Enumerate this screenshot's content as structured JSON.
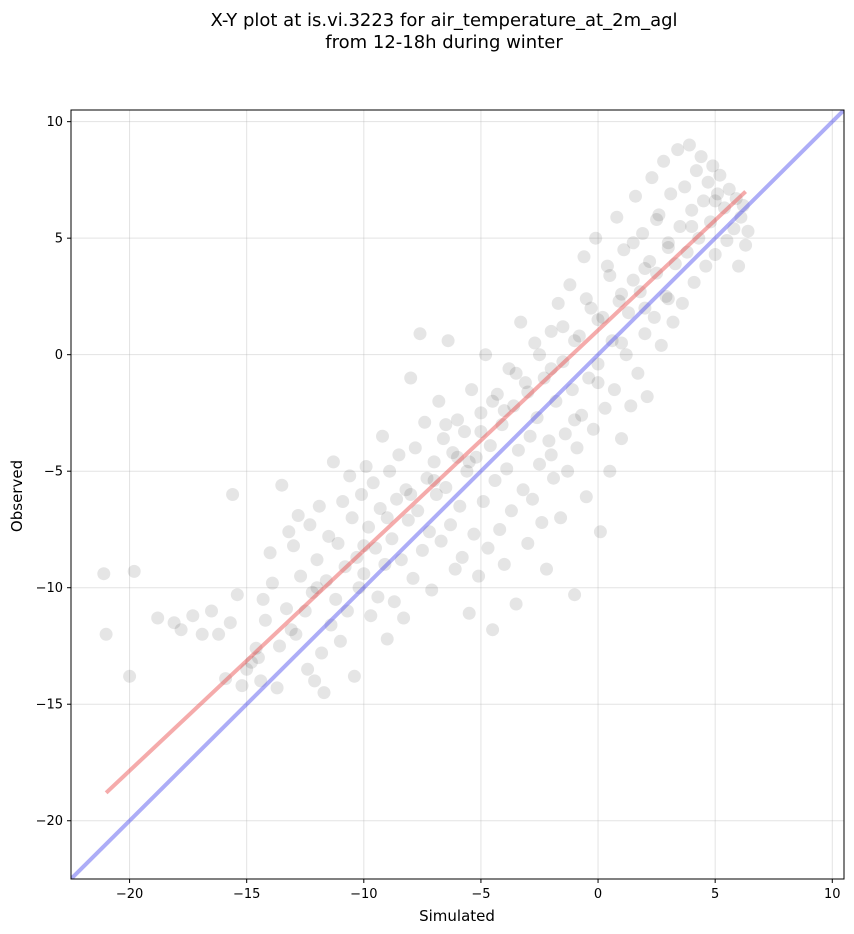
{
  "chart_data": {
    "type": "scatter",
    "title_lines": [
      "X-Y plot at is.vi.3223 for air_temperature_at_2m_agl",
      "from 12-18h during winter"
    ],
    "xlabel": "Simulated",
    "ylabel": "Observed",
    "xlim": [
      -22.5,
      10.5
    ],
    "ylim": [
      -22.5,
      10.5
    ],
    "x_ticks": [
      -20,
      -15,
      -10,
      -5,
      0,
      5,
      10
    ],
    "y_ticks": [
      -20,
      -15,
      -10,
      -5,
      0,
      5,
      10
    ],
    "x_tick_labels": [
      "−20",
      "−15",
      "−10",
      "−5",
      "0",
      "5",
      "10"
    ],
    "y_tick_labels": [
      "−20",
      "−15",
      "−10",
      "−5",
      "0",
      "5",
      "10"
    ],
    "grid": true,
    "point_color": "#000000",
    "point_alpha": 0.1,
    "series": [
      {
        "values": [
          [
            -21.1,
            -9.4
          ],
          [
            -21.0,
            -12.0
          ],
          [
            -20.0,
            -13.8
          ],
          [
            -19.8,
            -9.3
          ],
          [
            -18.8,
            -11.3
          ],
          [
            -18.1,
            -11.5
          ],
          [
            -17.8,
            -11.8
          ],
          [
            -17.3,
            -11.2
          ],
          [
            -16.9,
            -12.0
          ],
          [
            -16.5,
            -11.0
          ],
          [
            -16.2,
            -12.0
          ],
          [
            -15.9,
            -13.9
          ],
          [
            -15.7,
            -11.5
          ],
          [
            -15.6,
            -6.0
          ],
          [
            -15.4,
            -10.3
          ],
          [
            -15.2,
            -14.2
          ],
          [
            -15.0,
            -13.5
          ],
          [
            -14.8,
            -13.2
          ],
          [
            -14.6,
            -12.6
          ],
          [
            -14.4,
            -14.0
          ],
          [
            -14.3,
            -10.5
          ],
          [
            -14.2,
            -11.4
          ],
          [
            -14.0,
            -8.5
          ],
          [
            -13.9,
            -9.8
          ],
          [
            -13.7,
            -14.3
          ],
          [
            -13.6,
            -12.5
          ],
          [
            -13.5,
            -5.6
          ],
          [
            -13.3,
            -10.9
          ],
          [
            -13.2,
            -7.6
          ],
          [
            -13.0,
            -8.2
          ],
          [
            -12.9,
            -12.0
          ],
          [
            -12.8,
            -6.9
          ],
          [
            -12.7,
            -9.5
          ],
          [
            -12.5,
            -11.0
          ],
          [
            -12.4,
            -13.5
          ],
          [
            -12.3,
            -7.3
          ],
          [
            -12.2,
            -10.2
          ],
          [
            -12.1,
            -14.0
          ],
          [
            -12.0,
            -8.8
          ],
          [
            -11.9,
            -6.5
          ],
          [
            -11.8,
            -12.8
          ],
          [
            -11.7,
            -14.5
          ],
          [
            -11.6,
            -9.7
          ],
          [
            -11.5,
            -7.8
          ],
          [
            -11.4,
            -11.6
          ],
          [
            -11.3,
            -4.6
          ],
          [
            -11.2,
            -10.5
          ],
          [
            -11.1,
            -8.1
          ],
          [
            -11.0,
            -12.3
          ],
          [
            -10.9,
            -6.3
          ],
          [
            -10.8,
            -9.1
          ],
          [
            -10.7,
            -11.0
          ],
          [
            -10.6,
            -5.2
          ],
          [
            -10.5,
            -7.0
          ],
          [
            -10.4,
            -13.8
          ],
          [
            -10.3,
            -8.7
          ],
          [
            -10.2,
            -10.0
          ],
          [
            -10.1,
            -6.0
          ],
          [
            -10.0,
            -9.4
          ],
          [
            -9.9,
            -4.8
          ],
          [
            -9.8,
            -7.4
          ],
          [
            -9.7,
            -11.2
          ],
          [
            -9.6,
            -5.5
          ],
          [
            -9.5,
            -8.3
          ],
          [
            -9.4,
            -10.4
          ],
          [
            -9.3,
            -6.6
          ],
          [
            -9.2,
            -3.5
          ],
          [
            -9.1,
            -9.0
          ],
          [
            -9.0,
            -12.2
          ],
          [
            -8.9,
            -5.0
          ],
          [
            -8.8,
            -7.9
          ],
          [
            -8.7,
            -10.6
          ],
          [
            -8.6,
            -6.2
          ],
          [
            -8.5,
            -4.3
          ],
          [
            -8.4,
            -8.8
          ],
          [
            -8.3,
            -11.3
          ],
          [
            -8.2,
            -5.8
          ],
          [
            -8.1,
            -7.1
          ],
          [
            -8.0,
            -1.0
          ],
          [
            -7.9,
            -9.6
          ],
          [
            -7.8,
            -4.0
          ],
          [
            -7.7,
            -6.7
          ],
          [
            -7.6,
            0.9
          ],
          [
            -7.5,
            -8.4
          ],
          [
            -7.4,
            -2.9
          ],
          [
            -7.3,
            -5.3
          ],
          [
            -7.2,
            -7.6
          ],
          [
            -7.1,
            -10.1
          ],
          [
            -7.0,
            -4.6
          ],
          [
            -6.9,
            -6.0
          ],
          [
            -6.8,
            -2.0
          ],
          [
            -6.7,
            -8.0
          ],
          [
            -6.6,
            -3.6
          ],
          [
            -6.5,
            -5.7
          ],
          [
            -6.4,
            0.6
          ],
          [
            -6.3,
            -7.3
          ],
          [
            -6.2,
            -4.2
          ],
          [
            -6.1,
            -9.2
          ],
          [
            -6.0,
            -2.8
          ],
          [
            -5.9,
            -6.5
          ],
          [
            -5.8,
            -8.7
          ],
          [
            -5.7,
            -3.3
          ],
          [
            -5.6,
            -5.0
          ],
          [
            -5.5,
            -11.1
          ],
          [
            -5.4,
            -1.5
          ],
          [
            -5.3,
            -7.7
          ],
          [
            -5.2,
            -4.4
          ],
          [
            -5.1,
            -9.5
          ],
          [
            -5.0,
            -2.5
          ],
          [
            -4.9,
            -6.3
          ],
          [
            -4.8,
            0.0
          ],
          [
            -4.7,
            -8.3
          ],
          [
            -4.6,
            -3.9
          ],
          [
            -4.5,
            -11.8
          ],
          [
            -4.4,
            -5.4
          ],
          [
            -4.3,
            -1.7
          ],
          [
            -4.2,
            -7.5
          ],
          [
            -4.1,
            -3.0
          ],
          [
            -4.0,
            -9.0
          ],
          [
            -3.9,
            -4.9
          ],
          [
            -3.8,
            -0.6
          ],
          [
            -3.7,
            -6.7
          ],
          [
            -3.6,
            -2.2
          ],
          [
            -3.5,
            -10.7
          ],
          [
            -3.4,
            -4.1
          ],
          [
            -3.3,
            1.4
          ],
          [
            -3.2,
            -5.8
          ],
          [
            -3.1,
            -1.2
          ],
          [
            -3.0,
            -8.1
          ],
          [
            -2.9,
            -3.5
          ],
          [
            -2.8,
            -6.2
          ],
          [
            -2.7,
            0.5
          ],
          [
            -2.6,
            -2.7
          ],
          [
            -2.5,
            -4.7
          ],
          [
            -2.4,
            -7.2
          ],
          [
            -2.3,
            -1.0
          ],
          [
            -2.2,
            -9.2
          ],
          [
            -2.1,
            -3.7
          ],
          [
            -2.0,
            1.0
          ],
          [
            -1.9,
            -5.3
          ],
          [
            -1.8,
            -2.0
          ],
          [
            -1.7,
            2.2
          ],
          [
            -1.6,
            -7.0
          ],
          [
            -1.5,
            -0.3
          ],
          [
            -1.4,
            -3.4
          ],
          [
            -1.3,
            -5.0
          ],
          [
            -1.2,
            3.0
          ],
          [
            -1.1,
            -1.5
          ],
          [
            -1.0,
            -10.3
          ],
          [
            -0.9,
            -4.0
          ],
          [
            -0.8,
            0.8
          ],
          [
            -0.7,
            -2.6
          ],
          [
            -0.6,
            4.2
          ],
          [
            -0.5,
            -6.1
          ],
          [
            -0.4,
            -1.0
          ],
          [
            -0.3,
            2.0
          ],
          [
            -0.2,
            -3.2
          ],
          [
            -0.1,
            5.0
          ],
          [
            0.0,
            -0.4
          ],
          [
            0.1,
            -7.6
          ],
          [
            0.2,
            1.6
          ],
          [
            0.3,
            -2.3
          ],
          [
            0.4,
            3.8
          ],
          [
            0.5,
            -5.0
          ],
          [
            0.6,
            0.6
          ],
          [
            0.7,
            -1.5
          ],
          [
            0.8,
            5.9
          ],
          [
            0.9,
            2.3
          ],
          [
            1.0,
            -3.6
          ],
          [
            1.1,
            4.5
          ],
          [
            1.2,
            0.0
          ],
          [
            1.3,
            1.8
          ],
          [
            1.4,
            -2.2
          ],
          [
            1.5,
            3.2
          ],
          [
            1.6,
            6.8
          ],
          [
            1.7,
            -0.8
          ],
          [
            1.8,
            2.7
          ],
          [
            1.9,
            5.2
          ],
          [
            2.0,
            0.9
          ],
          [
            2.1,
            -1.8
          ],
          [
            2.2,
            4.0
          ],
          [
            2.3,
            7.6
          ],
          [
            2.4,
            1.6
          ],
          [
            2.5,
            3.5
          ],
          [
            2.6,
            6.0
          ],
          [
            2.7,
            0.4
          ],
          [
            2.8,
            8.3
          ],
          [
            2.9,
            2.5
          ],
          [
            3.0,
            4.8
          ],
          [
            3.1,
            6.9
          ],
          [
            3.2,
            1.4
          ],
          [
            3.3,
            3.9
          ],
          [
            3.4,
            8.8
          ],
          [
            3.5,
            5.5
          ],
          [
            3.6,
            2.2
          ],
          [
            3.7,
            7.2
          ],
          [
            3.8,
            4.4
          ],
          [
            3.9,
            9.0
          ],
          [
            4.0,
            6.2
          ],
          [
            4.1,
            3.1
          ],
          [
            4.2,
            7.9
          ],
          [
            4.3,
            5.0
          ],
          [
            4.4,
            8.5
          ],
          [
            4.5,
            6.6
          ],
          [
            4.6,
            3.8
          ],
          [
            4.7,
            7.4
          ],
          [
            4.8,
            5.7
          ],
          [
            4.9,
            8.1
          ],
          [
            5.0,
            4.3
          ],
          [
            5.1,
            6.9
          ],
          [
            5.2,
            7.7
          ],
          [
            5.4,
            6.3
          ],
          [
            5.5,
            4.9
          ],
          [
            5.6,
            7.1
          ],
          [
            5.8,
            5.4
          ],
          [
            5.9,
            6.7
          ],
          [
            6.0,
            3.8
          ],
          [
            6.1,
            5.9
          ],
          [
            6.2,
            6.4
          ],
          [
            6.3,
            4.7
          ],
          [
            6.4,
            5.3
          ],
          [
            -14.5,
            -13.0
          ],
          [
            -13.1,
            -11.8
          ],
          [
            -12.0,
            -10.0
          ],
          [
            -10.0,
            -8.2
          ],
          [
            -9.0,
            -7.0
          ],
          [
            -8.0,
            -6.0
          ],
          [
            -7.0,
            -5.4
          ],
          [
            -6.0,
            -4.4
          ],
          [
            -5.0,
            -3.3
          ],
          [
            -4.0,
            -2.4
          ],
          [
            -3.0,
            -1.6
          ],
          [
            -2.0,
            -0.6
          ],
          [
            -1.0,
            0.6
          ],
          [
            0.0,
            1.5
          ],
          [
            1.0,
            2.6
          ],
          [
            2.0,
            3.7
          ],
          [
            3.0,
            4.6
          ],
          [
            4.0,
            5.5
          ],
          [
            5.0,
            6.6
          ],
          [
            -6.5,
            -3.0
          ],
          [
            -5.5,
            -4.6
          ],
          [
            -4.5,
            -2.0
          ],
          [
            -3.5,
            -0.8
          ],
          [
            -2.5,
            0.0
          ],
          [
            -1.5,
            1.2
          ],
          [
            -0.5,
            2.4
          ],
          [
            0.5,
            3.4
          ],
          [
            1.5,
            4.8
          ],
          [
            2.5,
            5.8
          ],
          [
            -2.0,
            -4.3
          ],
          [
            -1.0,
            -2.8
          ],
          [
            0.0,
            -1.2
          ],
          [
            1.0,
            0.5
          ],
          [
            2.0,
            2.0
          ],
          [
            3.0,
            2.4
          ]
        ]
      }
    ],
    "regression_line": {
      "color": "#e84444",
      "alpha": 0.45,
      "x": [
        -21.0,
        6.3
      ],
      "y": [
        -18.8,
        7.0
      ]
    },
    "identity_line": {
      "color": "#4a4aee",
      "alpha": 0.45,
      "x": [
        -22.5,
        10.5
      ],
      "y": [
        -22.5,
        10.5
      ]
    }
  }
}
